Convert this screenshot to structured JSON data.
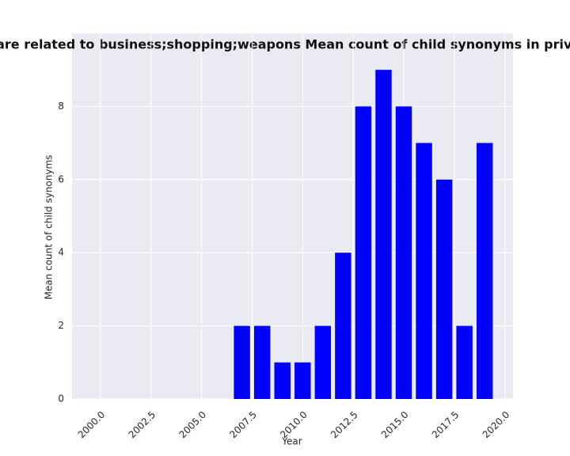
{
  "chart_data": {
    "type": "bar",
    "title": "gories are related to business;shopping;weapons Mean count of child synonyms in privacy pol",
    "x_label": "Year",
    "y_label": "Mean count of child synonyms",
    "x": [
      2007,
      2008,
      2009,
      2010,
      2011,
      2012,
      2013,
      2014,
      2015,
      2016,
      2017,
      2018,
      2019
    ],
    "values": [
      2,
      2,
      1,
      1,
      2,
      4,
      8,
      9,
      8,
      7,
      6,
      2,
      7
    ],
    "color": "#0000ff",
    "bar_width": 0.8,
    "xlim": [
      1998.6,
      2020.4
    ],
    "xticks": [
      {
        "value": 2000,
        "label": "2000.0"
      },
      {
        "value": 2002.5,
        "label": "2002.5"
      },
      {
        "value": 2005,
        "label": "2005.0"
      },
      {
        "value": 2007.5,
        "label": "2007.5"
      },
      {
        "value": 2010,
        "label": "2010.0"
      },
      {
        "value": 2012.5,
        "label": "2012.5"
      },
      {
        "value": 2015,
        "label": "2015.0"
      },
      {
        "value": 2017.5,
        "label": "2017.5"
      },
      {
        "value": 2020,
        "label": "2020.0"
      }
    ],
    "ylim": [
      0,
      10
    ],
    "yticks": [
      0,
      2,
      4,
      6,
      8
    ],
    "grid": true
  }
}
